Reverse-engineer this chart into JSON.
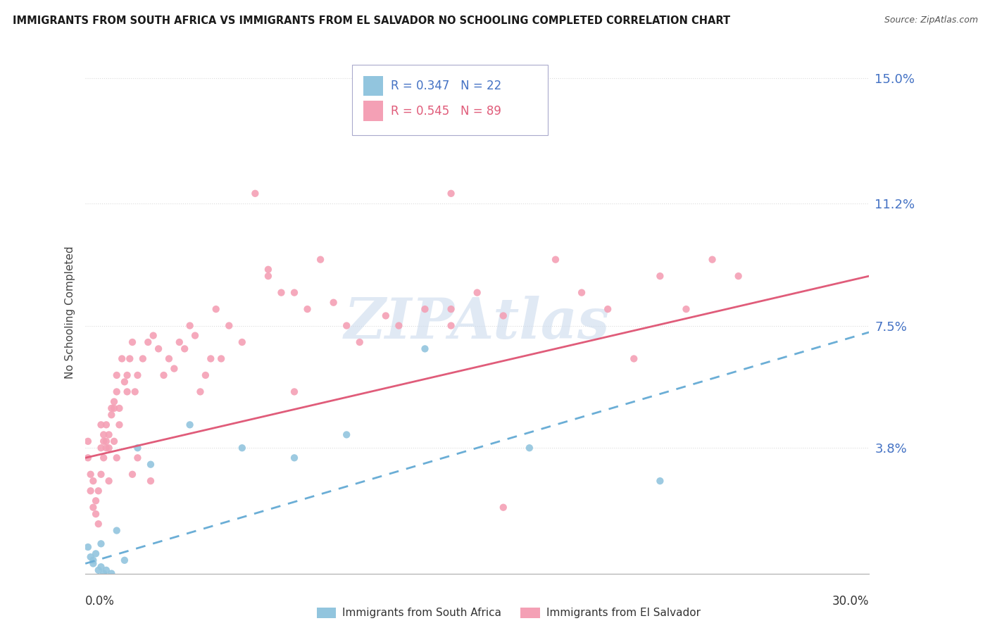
{
  "title": "IMMIGRANTS FROM SOUTH AFRICA VS IMMIGRANTS FROM EL SALVADOR NO SCHOOLING COMPLETED CORRELATION CHART",
  "source": "Source: ZipAtlas.com",
  "ylabel": "No Schooling Completed",
  "yticks": [
    0.0,
    0.038,
    0.075,
    0.112,
    0.15
  ],
  "ytick_labels": [
    "",
    "3.8%",
    "7.5%",
    "11.2%",
    "15.0%"
  ],
  "xlim": [
    0.0,
    0.3
  ],
  "ylim": [
    0.0,
    0.158
  ],
  "color_south_africa": "#92c5de",
  "color_el_salvador": "#f4a0b5",
  "color_line_el_salvador": "#e05c7a",
  "color_line_south_africa": "#6baed6",
  "watermark": "ZIPAtlas",
  "watermark_color": "#c8d8ec",
  "sa_x": [
    0.001,
    0.002,
    0.003,
    0.003,
    0.004,
    0.005,
    0.006,
    0.006,
    0.007,
    0.008,
    0.01,
    0.012,
    0.015,
    0.02,
    0.025,
    0.04,
    0.06,
    0.08,
    0.1,
    0.13,
    0.17,
    0.22
  ],
  "sa_y": [
    0.008,
    0.005,
    0.003,
    0.004,
    0.006,
    0.001,
    0.002,
    0.009,
    0.0,
    0.001,
    0.0,
    0.013,
    0.004,
    0.038,
    0.033,
    0.045,
    0.038,
    0.035,
    0.042,
    0.068,
    0.038,
    0.028
  ],
  "es_x": [
    0.001,
    0.001,
    0.002,
    0.002,
    0.003,
    0.003,
    0.004,
    0.004,
    0.005,
    0.005,
    0.006,
    0.006,
    0.007,
    0.007,
    0.008,
    0.008,
    0.009,
    0.009,
    0.01,
    0.01,
    0.011,
    0.011,
    0.012,
    0.012,
    0.013,
    0.014,
    0.015,
    0.016,
    0.017,
    0.018,
    0.019,
    0.02,
    0.022,
    0.024,
    0.026,
    0.028,
    0.03,
    0.032,
    0.034,
    0.036,
    0.038,
    0.04,
    0.042,
    0.044,
    0.046,
    0.048,
    0.05,
    0.052,
    0.055,
    0.06,
    0.065,
    0.07,
    0.075,
    0.08,
    0.085,
    0.09,
    0.095,
    0.1,
    0.105,
    0.115,
    0.12,
    0.13,
    0.14,
    0.14,
    0.15,
    0.16,
    0.18,
    0.19,
    0.2,
    0.21,
    0.22,
    0.23,
    0.24,
    0.25,
    0.14,
    0.16,
    0.07,
    0.08,
    0.025,
    0.018,
    0.012,
    0.008,
    0.006,
    0.007,
    0.009,
    0.011,
    0.013,
    0.016,
    0.02
  ],
  "es_y": [
    0.04,
    0.035,
    0.03,
    0.025,
    0.028,
    0.02,
    0.022,
    0.018,
    0.025,
    0.015,
    0.038,
    0.03,
    0.04,
    0.035,
    0.045,
    0.038,
    0.042,
    0.028,
    0.05,
    0.048,
    0.052,
    0.05,
    0.055,
    0.06,
    0.045,
    0.065,
    0.058,
    0.06,
    0.065,
    0.07,
    0.055,
    0.06,
    0.065,
    0.07,
    0.072,
    0.068,
    0.06,
    0.065,
    0.062,
    0.07,
    0.068,
    0.075,
    0.072,
    0.055,
    0.06,
    0.065,
    0.08,
    0.065,
    0.075,
    0.07,
    0.115,
    0.09,
    0.085,
    0.055,
    0.08,
    0.095,
    0.082,
    0.075,
    0.07,
    0.078,
    0.075,
    0.08,
    0.075,
    0.115,
    0.085,
    0.02,
    0.095,
    0.085,
    0.08,
    0.065,
    0.09,
    0.08,
    0.095,
    0.09,
    0.08,
    0.078,
    0.092,
    0.085,
    0.028,
    0.03,
    0.035,
    0.04,
    0.045,
    0.042,
    0.038,
    0.04,
    0.05,
    0.055,
    0.035
  ],
  "sa_trend": [
    0.003,
    0.073
  ],
  "es_trend": [
    0.035,
    0.09
  ],
  "grid_color": "#cccccc",
  "grid_style": ":"
}
